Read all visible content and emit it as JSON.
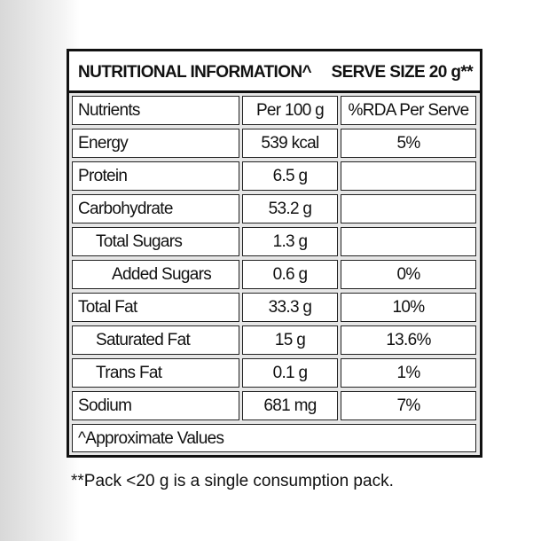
{
  "header": {
    "title": "NUTRITIONAL INFORMATION^",
    "serve_size": "SERVE SIZE 20 g**"
  },
  "table": {
    "columns": [
      "Nutrients",
      "Per 100 g",
      "%RDA Per Serve"
    ],
    "rows": [
      [
        "Energy",
        "539 kcal",
        "5%"
      ],
      [
        "Protein",
        "6.5 g",
        null
      ],
      [
        "Carbohydrate",
        "53.2 g",
        null
      ],
      [
        "Total Sugars",
        "1.3 g",
        null
      ],
      [
        "Added Sugars",
        "0.6 g",
        "0%"
      ],
      [
        "Total Fat",
        "33.3 g",
        "10%"
      ],
      [
        "Saturated Fat",
        "15 g",
        "13.6%"
      ],
      [
        "Trans Fat",
        "0.1 g",
        "1%"
      ],
      [
        "Sodium",
        "681 mg",
        "7%"
      ]
    ],
    "footnote": "^Approximate Values"
  },
  "note": "**Pack <20 g is a single consumption pack."
}
